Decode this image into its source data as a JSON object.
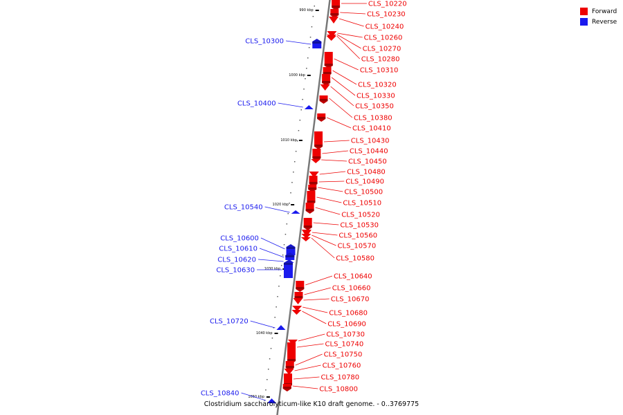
{
  "caption": "Clostridium saccharolyticum-like K10 draft genome. - 0..3769775",
  "legend": [
    {
      "label": "Forward",
      "color": "#ee0000"
    },
    {
      "label": "Reverse",
      "color": "#1a1aee"
    }
  ],
  "colors": {
    "forward": "#ee0000",
    "reverse": "#1a1aee",
    "backbone": "#777777"
  },
  "ticks": [
    "990 kbp",
    "1000 kbp",
    "1010 kbp",
    "1020 kbp",
    "1030 kbp",
    "1040 kbp",
    "1050 kbp"
  ],
  "forward_genes": [
    "CLS_10220",
    "CLS_10230",
    "CLS_10240",
    "CLS_10260",
    "CLS_10270",
    "CLS_10280",
    "CLS_10310",
    "CLS_10320",
    "CLS_10330",
    "CLS_10350",
    "CLS_10380",
    "CLS_10410",
    "CLS_10430",
    "CLS_10440",
    "CLS_10450",
    "CLS_10480",
    "CLS_10490",
    "CLS_10500",
    "CLS_10510",
    "CLS_10520",
    "CLS_10530",
    "CLS_10560",
    "CLS_10570",
    "CLS_10580",
    "CLS_10640",
    "CLS_10660",
    "CLS_10670",
    "CLS_10680",
    "CLS_10690",
    "CLS_10730",
    "CLS_10740",
    "CLS_10750",
    "CLS_10760",
    "CLS_10780",
    "CLS_10800"
  ],
  "reverse_genes": [
    "CLS_10300",
    "CLS_10400",
    "CLS_10540",
    "CLS_10600",
    "CLS_10610",
    "CLS_10620",
    "CLS_10630",
    "CLS_10720",
    "CLS_10840"
  ]
}
